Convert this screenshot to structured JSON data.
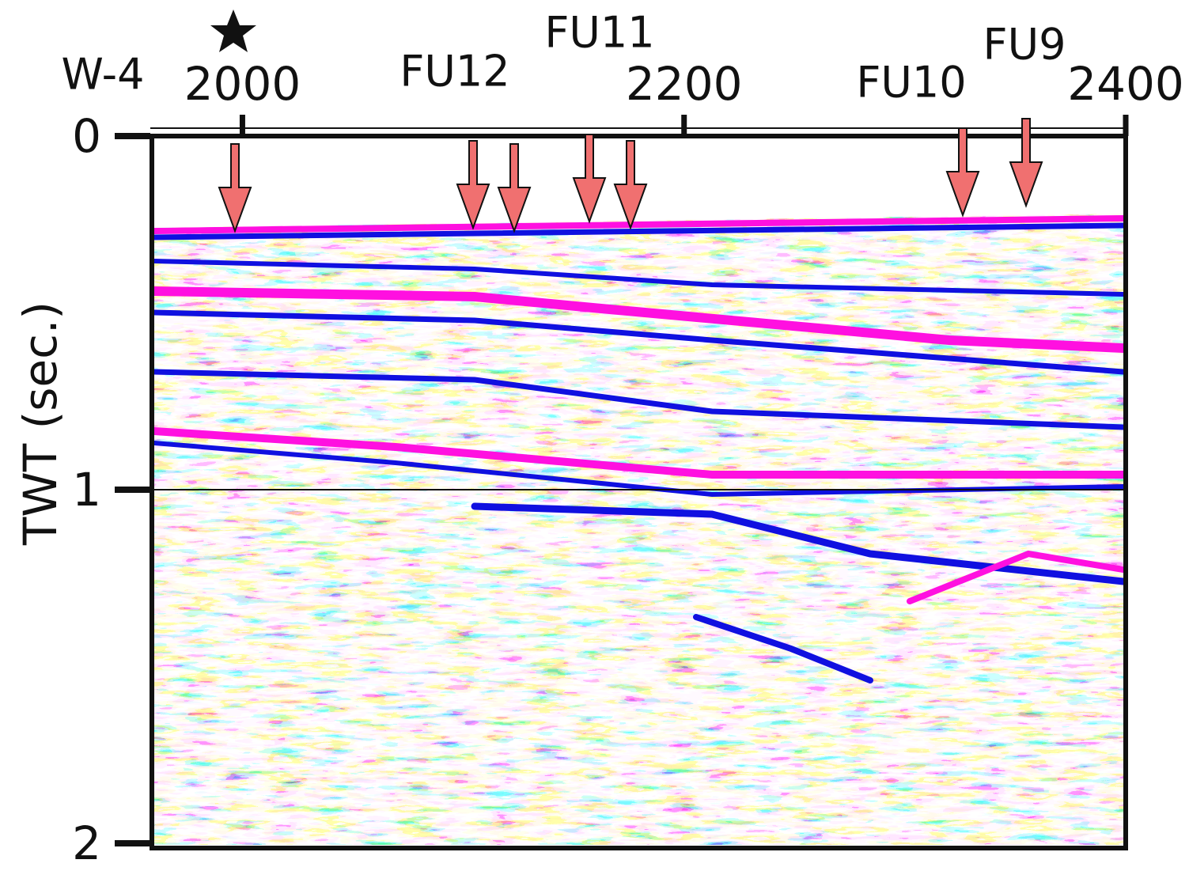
{
  "chart_data": {
    "type": "image",
    "ylabel": "TWT (sec.)",
    "annotations": [
      "W-4",
      "FU12",
      "FU11",
      "FU10",
      "FU9"
    ],
    "xlim": [
      1959,
      2400
    ],
    "xticks": [
      2000,
      2200,
      2400
    ],
    "ylim": [
      0,
      2
    ],
    "yticks": [
      0,
      1,
      2
    ],
    "grid": true
  }
}
